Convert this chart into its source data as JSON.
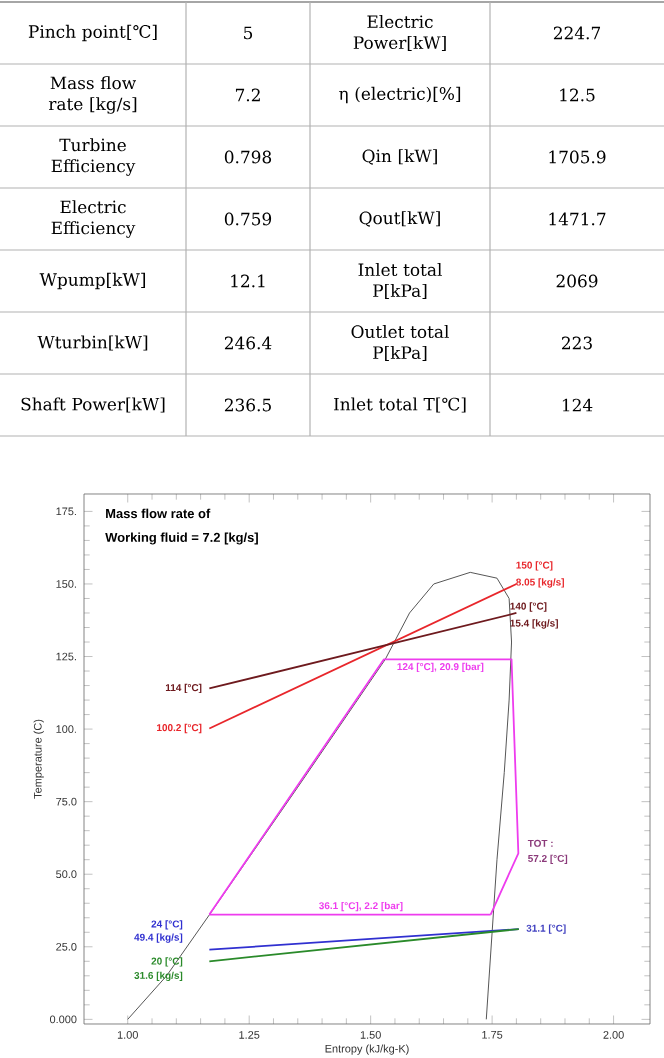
{
  "chart_data": [
    {
      "type": "other",
      "annotations": [
        "Pinch point[℃]",
        "5",
        "Electric Power[kW]",
        "224.7",
        "Mass flow rate [kg/s]",
        "7.2",
        "η (electric)[%]",
        "12.5",
        "Turbine Efficiency",
        "0.798",
        "Qin [kW]",
        "1705.9",
        "Electric Efficiency",
        "0.759",
        "Qout[kW]",
        "1471.7",
        "Wpump[kW]",
        "12.1",
        "Inlet total P[kPa]",
        "2069",
        "Wturbin[kW]",
        "246.4",
        "Outlet total P[kPa]",
        "223",
        "Shaft Power[kW]",
        "236.5",
        "Inlet total T[℃]",
        "124"
      ]
    },
    {
      "type": "line",
      "xlabel": "Entropy (kJ/kg-K)",
      "ylabel": "Temperature (C)",
      "xlim": [
        0.91,
        2.075
      ],
      "ylim": [
        -1.6,
        181
      ],
      "xticks": [
        {
          "value": 1,
          "label": "1.00"
        },
        {
          "value": 1.25,
          "label": "1.25"
        },
        {
          "value": 1.5,
          "label": "1.50"
        },
        {
          "value": 1.75,
          "label": "1.75"
        },
        {
          "value": 2,
          "label": "2.00"
        }
      ],
      "yticks": [
        {
          "value": 0,
          "label": "0.000"
        },
        {
          "value": 25,
          "label": "25.0"
        },
        {
          "value": 50,
          "label": "50.0"
        },
        {
          "value": 75,
          "label": "75.0"
        },
        {
          "value": 100,
          "label": "100."
        },
        {
          "value": 125,
          "label": "125."
        },
        {
          "value": 150,
          "label": "150."
        },
        {
          "value": 175,
          "label": "175."
        }
      ],
      "series": [
        {
          "color": "#555555",
          "x": [
            1.0,
            1.08,
            1.168,
            1.35,
            1.53,
            1.58,
            1.63,
            1.705,
            1.76,
            1.785,
            1.79,
            1.785,
            1.775,
            1.76,
            1.75,
            1.738
          ],
          "values": [
            0,
            15,
            36,
            80,
            124,
            140,
            150,
            154,
            152,
            145,
            130,
            110,
            85,
            55,
            30,
            0
          ]
        },
        {
          "color": "#e8262b",
          "x": [
            1.168,
            1.8
          ],
          "values": [
            100.2,
            150
          ]
        },
        {
          "color": "#6e1a1e",
          "x": [
            1.168,
            1.8
          ],
          "values": [
            114,
            140
          ]
        },
        {
          "color": "#ee3cee",
          "x": [
            1.168,
            1.527,
            1.79,
            1.804,
            1.747
          ],
          "values": [
            36.1,
            124,
            124,
            57.2,
            36.1
          ]
        },
        {
          "color": "#ee3cee",
          "x": [
            1.168,
            1.747
          ],
          "values": [
            36.1,
            36.1
          ]
        },
        {
          "color": "#3030d0",
          "x": [
            1.168,
            1.805
          ],
          "values": [
            24,
            31.1
          ]
        },
        {
          "color": "#2a8a2a",
          "x": [
            1.168,
            1.805
          ],
          "values": [
            20,
            31.1
          ]
        }
      ],
      "annotations": [
        "Mass flow rate of",
        "Working fluid = 7.2 [kg/s]",
        {
          "text": "150 [°C]",
          "x": 1.8,
          "y": 150
        },
        {
          "text": "8.05 [kg/s]",
          "x": 1.8,
          "y": 150
        },
        {
          "text": "140 [°C]",
          "x": 1.8,
          "y": 140
        },
        {
          "text": "15.4 [kg/s]",
          "x": 1.8,
          "y": 140
        },
        {
          "text": "114 [°C]",
          "x": 1.168,
          "y": 114
        },
        {
          "text": "100.2 [°C]",
          "x": 1.168,
          "y": 100.2
        },
        {
          "text": "124 [°C], 20.9 [bar]",
          "x": 1.66,
          "y": 124
        },
        {
          "text": "TOT :",
          "x": 1.804,
          "y": 57.2
        },
        {
          "text": "57.2 [°C]",
          "x": 1.804,
          "y": 57.2
        },
        {
          "text": "36.1 [°C], 2.2 [bar]",
          "x": 1.48,
          "y": 36.1
        },
        "24 [°C]",
        "49.4 [kg/s]",
        "20 [°C]",
        "31.6 [kg/s]",
        {
          "text": "31.1 [°C]",
          "x": 1.805,
          "y": 31.1
        }
      ]
    }
  ]
}
